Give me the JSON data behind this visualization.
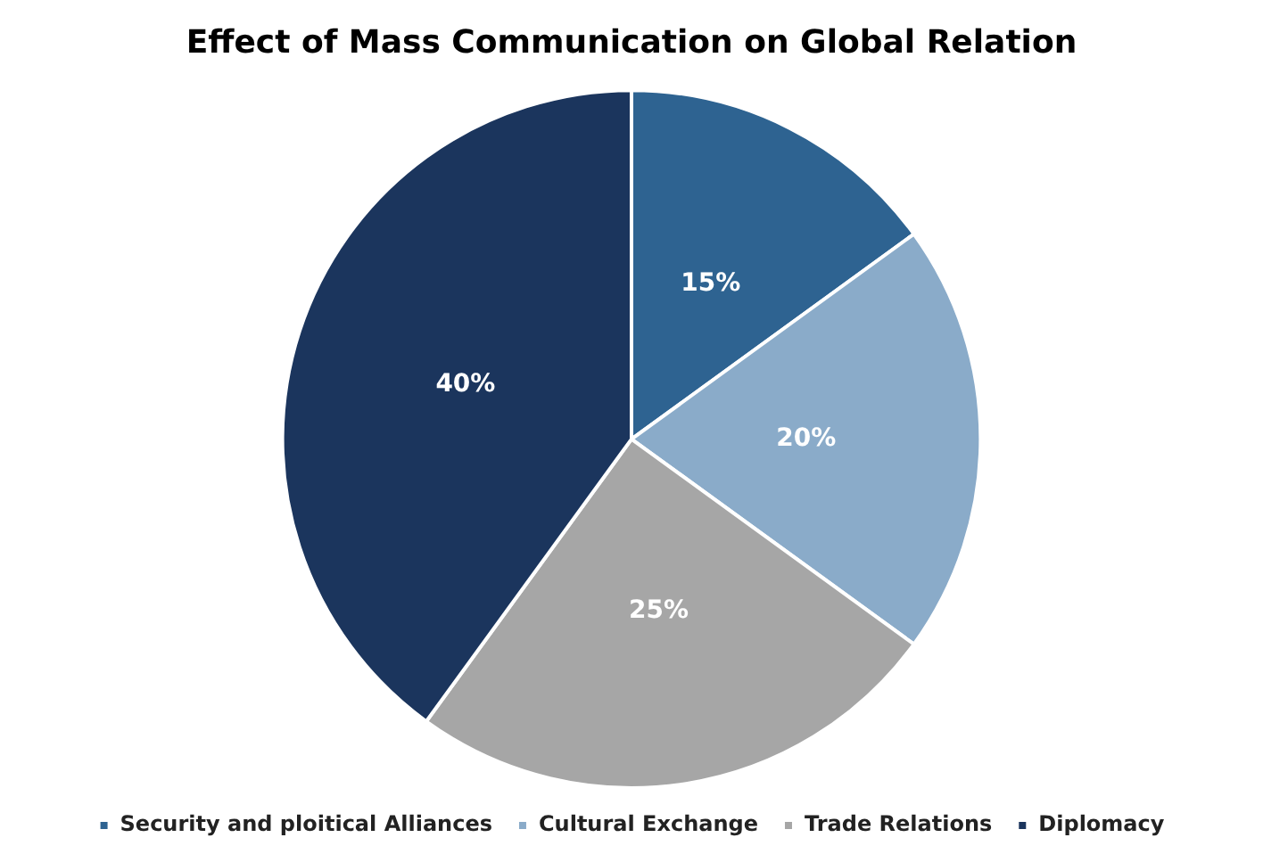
{
  "chart_data": {
    "type": "pie",
    "title": "Effect of Mass Communication on Global Relation",
    "categories": [
      "Security and ploitical Alliances",
      "Cultural Exchange",
      "Trade Relations",
      "Diplomacy"
    ],
    "values": [
      15,
      20,
      25,
      40
    ],
    "colors": [
      "#2e6391",
      "#8aabc9",
      "#a6a6a6",
      "#1b355d"
    ],
    "value_labels": [
      "15%",
      "20%",
      "25%",
      "40%"
    ],
    "legend": "bottom"
  }
}
